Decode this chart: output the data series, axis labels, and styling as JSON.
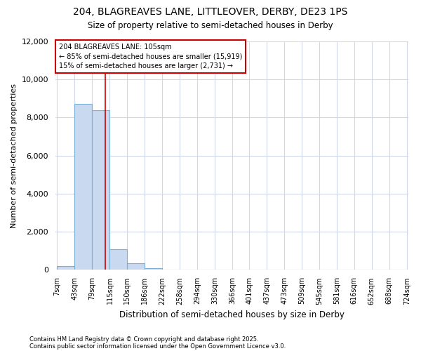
{
  "title_line1": "204, BLAGREAVES LANE, LITTLEOVER, DERBY, DE23 1PS",
  "title_line2": "Size of property relative to semi-detached houses in Derby",
  "xlabel": "Distribution of semi-detached houses by size in Derby",
  "ylabel": "Number of semi-detached properties",
  "footnote1": "Contains HM Land Registry data © Crown copyright and database right 2025.",
  "footnote2": "Contains public sector information licensed under the Open Government Licence v3.0.",
  "annotation_line1": "204 BLAGREAVES LANE: 105sqm",
  "annotation_line2": "← 85% of semi-detached houses are smaller (15,919)",
  "annotation_line3": "15% of semi-detached houses are larger (2,731) →",
  "bar_edges": [
    7,
    43,
    79,
    115,
    150,
    186,
    222,
    258,
    294,
    330,
    366,
    401,
    437,
    473,
    509,
    545,
    581,
    616,
    652,
    688,
    724
  ],
  "bar_heights": [
    200,
    8700,
    8400,
    1100,
    350,
    100,
    0,
    0,
    0,
    0,
    0,
    0,
    0,
    0,
    0,
    0,
    0,
    0,
    0,
    0
  ],
  "property_size": 105,
  "bar_color": "#c8d9f0",
  "bar_edge_color": "#7bafd4",
  "vline_color": "#cc0000",
  "background_color": "#ffffff",
  "plot_bg_color": "#ffffff",
  "grid_color": "#d0d8e8",
  "annotation_box_color": "#cc0000",
  "annotation_box_fill": "#ffffff",
  "ylim_max": 12000,
  "yticks": [
    0,
    2000,
    4000,
    6000,
    8000,
    10000,
    12000
  ]
}
